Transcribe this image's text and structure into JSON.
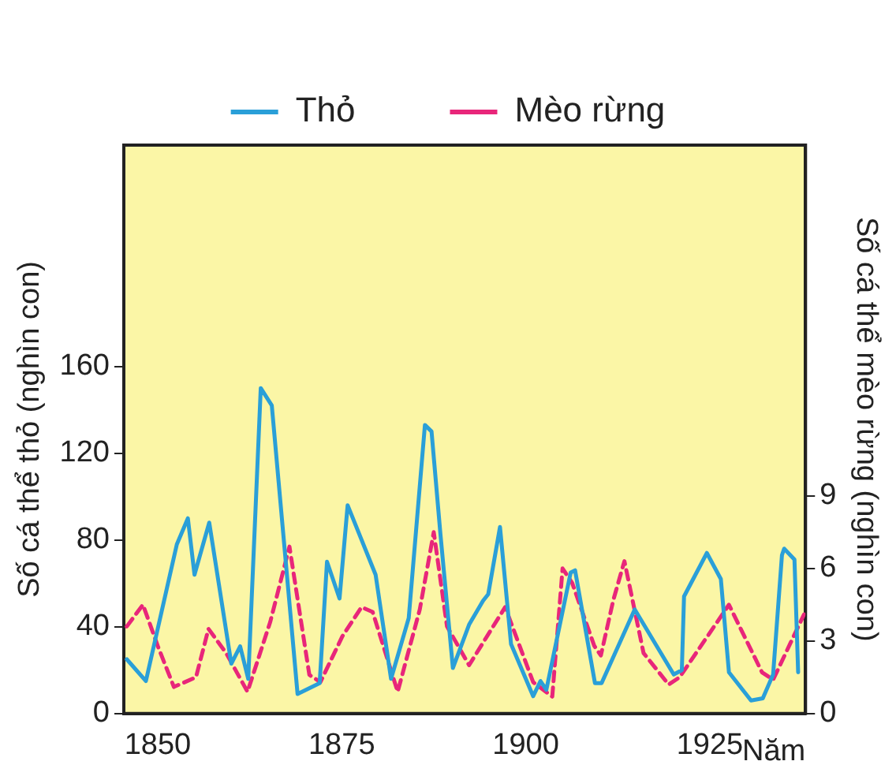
{
  "chart_data": {
    "type": "line",
    "xlabel": "Năm",
    "ylabel": "Số cá thể thỏ (nghìn con)",
    "y2label": "Số cá thể mèo rừng (nghìn con)",
    "xlim": [
      1845.4,
      1938
    ],
    "xticks": [
      1850,
      1875,
      1900,
      1925
    ],
    "ylim": [
      0,
      262
    ],
    "yticks": [
      0,
      40,
      80,
      120,
      160
    ],
    "y2lim": [
      0,
      23.5
    ],
    "y2ticks": [
      0,
      3,
      6,
      9
    ],
    "grid": false,
    "legend": "top",
    "marker": "none",
    "series": [
      {
        "name": "Thỏ",
        "color": "#2a9fd8",
        "line_style": "solid",
        "x": [
          1845.8,
          1848.4,
          1852.6,
          1854.1,
          1855,
          1857,
          1860,
          1861.2,
          1862.3,
          1864,
          1865.5,
          1869,
          1872,
          1873,
          1874.7,
          1875.8,
          1879.6,
          1881.7,
          1884.1,
          1886.3,
          1887.2,
          1888.4,
          1890.1,
          1892.3,
          1894.2,
          1894.9,
          1896.5,
          1898,
          1901,
          1902,
          1902.8,
          1906.1,
          1906.7,
          1909.4,
          1910.3,
          1914.8,
          1920.1,
          1921.2,
          1921.5,
          1924.6,
          1926.5,
          1927.6,
          1930.6,
          1932.2,
          1933.6,
          1934.8,
          1935.1,
          1936.5,
          1937
        ],
        "values": [
          25,
          15,
          78,
          90,
          64,
          88,
          23,
          31,
          16,
          150,
          142,
          9,
          14,
          70,
          53,
          96,
          64,
          16,
          44,
          133,
          130,
          83,
          21,
          41,
          52,
          55,
          86,
          32,
          8,
          15,
          11,
          65,
          66,
          14,
          14,
          48,
          18,
          20,
          54,
          74,
          62,
          19,
          6,
          7,
          18,
          73,
          76,
          71,
          19
        ]
      },
      {
        "name": "Mèo rừng",
        "color": "#e8267a",
        "line_style": "dashed",
        "axis": "y2",
        "x": [
          1845.8,
          1848,
          1850,
          1852.2,
          1855.2,
          1856.9,
          1859.3,
          1862.2,
          1865.3,
          1867.9,
          1870.6,
          1872.1,
          1875.1,
          1877.7,
          1879.2,
          1882.6,
          1885.6,
          1887.5,
          1889.3,
          1892.3,
          1897.2,
          1901,
          1903.6,
          1905,
          1906.3,
          1909.3,
          1910.2,
          1911.9,
          1913.4,
          1916,
          1919.4,
          1920.9,
          1927.6,
          1932.1,
          1933.6,
          1937.8
        ],
        "values": [
          3.6,
          4.5,
          2.8,
          1.1,
          1.5,
          3.5,
          2.5,
          0.9,
          3.8,
          6.9,
          1.6,
          1.3,
          3.2,
          4.4,
          4.2,
          0.9,
          4.3,
          7.5,
          3.6,
          2,
          4.4,
          1.3,
          0.7,
          6,
          5.4,
          2.8,
          2.4,
          4.7,
          6.3,
          2.5,
          1.2,
          1.5,
          4.5,
          1.7,
          1.4,
          4.1
        ]
      }
    ]
  }
}
